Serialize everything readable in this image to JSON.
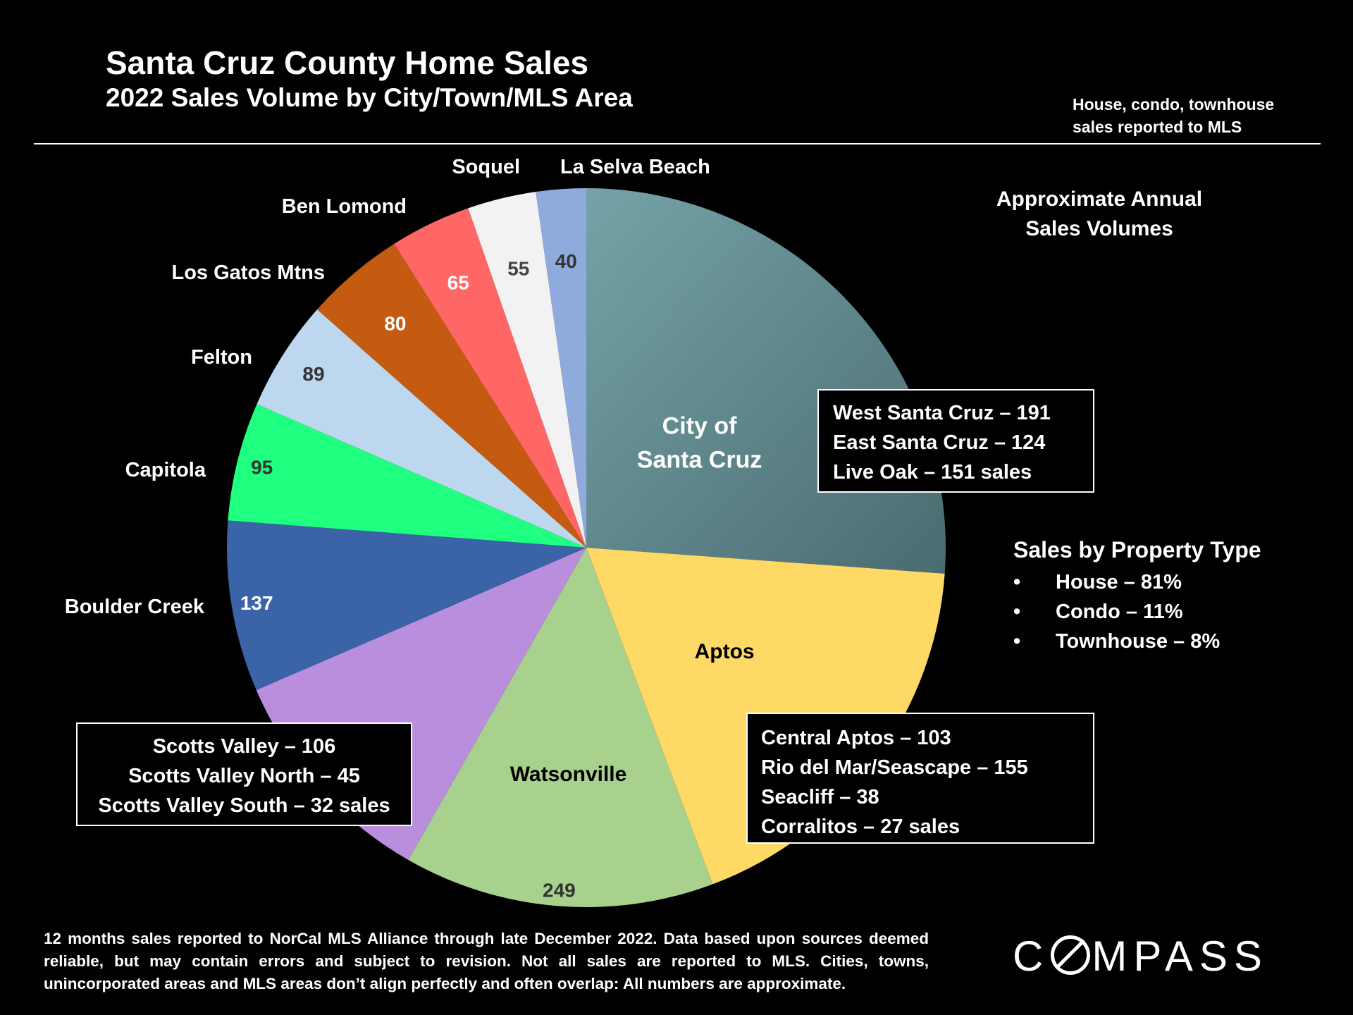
{
  "title": "Santa Cruz County Home Sales",
  "subtitle": "2022 Sales Volume by City/Town/MLS Area",
  "note_line1": "House, condo, townhouse",
  "note_line2": "sales reported to MLS",
  "annual_line1": "Approximate Annual",
  "annual_line2": "Sales Volumes",
  "property_type": {
    "heading": "Sales by Property Type",
    "items": [
      "House – 81%",
      "Condo – 11%",
      "Townhouse – 8%"
    ],
    "bullet": "•"
  },
  "boxes": {
    "santa_cruz": [
      "West Santa Cruz – 191",
      "East Santa Cruz – 124",
      "Live Oak – 151 sales"
    ],
    "aptos": [
      "Central Aptos – 103",
      "Rio del Mar/Seascape – 155",
      "Seacliff – 38",
      "Corralitos – 27 sales"
    ],
    "scotts_valley": [
      "Scotts Valley – 106",
      "Scotts Valley North – 45",
      "Scotts Valley South – 32 sales"
    ]
  },
  "footer": "12 months sales reported to NorCal MLS Alliance through late December 2022. Data based upon sources deemed reliable, but may contain errors and subject to revision. Not all sales are reported to MLS. Cities, towns, unincorporated areas and MLS areas don’t align perfectly and often overlap: All numbers are approximate.",
  "logo": {
    "pre": "C",
    "post": "MPASS"
  },
  "chart_data": {
    "type": "pie",
    "start": "12 o'clock",
    "direction": "clockwise",
    "slices": [
      {
        "name": "City of Santa Cruz",
        "value": 466,
        "color": "#5f8a90",
        "label_lines": [
          "City of",
          "Santa Cruz"
        ],
        "value_label": ""
      },
      {
        "name": "Aptos",
        "value": 323,
        "color": "#ffd966",
        "label_lines": [
          "Aptos"
        ],
        "value_label": ""
      },
      {
        "name": "Watsonville",
        "value": 249,
        "color": "#a9d18e",
        "label_lines": [
          "Watsonville"
        ],
        "value_label": "249"
      },
      {
        "name": "Scotts Valley",
        "value": 183,
        "color": "#b98fdd",
        "label_lines": [],
        "value_label": ""
      },
      {
        "name": "Boulder Creek",
        "value": 137,
        "color": "#3b63a8",
        "label_lines": [
          "Boulder Creek"
        ],
        "value_label": "137"
      },
      {
        "name": "Capitola",
        "value": 95,
        "color": "#1fff80",
        "label_lines": [
          "Capitola"
        ],
        "value_label": "95"
      },
      {
        "name": "Felton",
        "value": 89,
        "color": "#bdd7ee",
        "label_lines": [
          "Felton"
        ],
        "value_label": "89"
      },
      {
        "name": "Los Gatos Mtns",
        "value": 80,
        "color": "#c55a11",
        "label_lines": [
          "Los Gatos Mtns"
        ],
        "value_label": "80"
      },
      {
        "name": "Ben Lomond",
        "value": 65,
        "color": "#ff6666",
        "label_lines": [
          "Ben Lomond"
        ],
        "value_label": "65"
      },
      {
        "name": "Soquel",
        "value": 55,
        "color": "#f2f2f2",
        "label_lines": [
          "Soquel"
        ],
        "value_label": "55"
      },
      {
        "name": "La Selva Beach",
        "value": 40,
        "color": "#8faadc",
        "label_lines": [
          "La Selva Beach"
        ],
        "value_label": "40"
      }
    ]
  }
}
